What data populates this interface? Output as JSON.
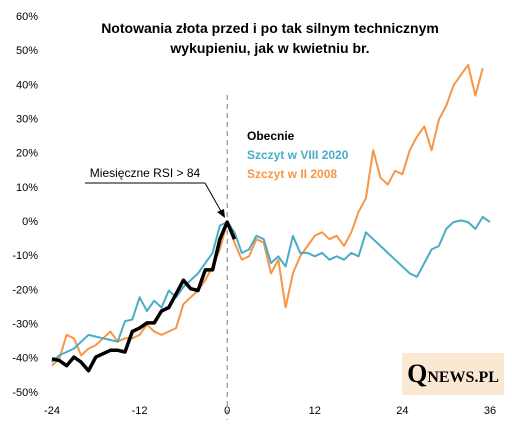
{
  "chart_data": {
    "type": "line",
    "title": "Notowania złota przed i po tak silnym technicznym wykupieniu, jak w kwietniu br.",
    "annotation": "Miesięczne RSI > 84",
    "logo": "QNEWS.PL",
    "x": [
      -24,
      -23,
      -22,
      -21,
      -20,
      -19,
      -18,
      -17,
      -16,
      -15,
      -14,
      -13,
      -12,
      -11,
      -10,
      -9,
      -8,
      -7,
      -6,
      -5,
      -4,
      -3,
      -2,
      -1,
      0,
      1,
      2,
      3,
      4,
      5,
      6,
      7,
      8,
      9,
      10,
      11,
      12,
      13,
      14,
      15,
      16,
      17,
      18,
      19,
      20,
      21,
      22,
      23,
      24,
      25,
      26,
      27,
      28,
      29,
      30,
      31,
      32,
      33,
      34,
      35,
      36
    ],
    "series": [
      {
        "name": "Obecnie",
        "color": "#000000",
        "values": [
          -40,
          -40.5,
          -42,
          -39.5,
          -41,
          -43.5,
          -39.5,
          -38.5,
          -37.5,
          -37.5,
          -38,
          -32,
          -31,
          -29.5,
          -29.5,
          -26,
          -25,
          -21,
          -17,
          -19.5,
          -20,
          -14,
          -14,
          -5,
          0,
          -5,
          null,
          null,
          null,
          null,
          null,
          null,
          null,
          null,
          null,
          null,
          null,
          null,
          null,
          null,
          null,
          null,
          null,
          null,
          null,
          null,
          null,
          null,
          null,
          null,
          null,
          null,
          null,
          null,
          null,
          null,
          null,
          null,
          null,
          null,
          null
        ]
      },
      {
        "name": "Szczyt w VIII 2020",
        "color": "#4bacc6",
        "values": [
          -41,
          -39,
          -38,
          -37,
          -35,
          -33,
          -33.5,
          -34,
          -34.5,
          -35,
          -29,
          -28.5,
          -22,
          -26,
          -23,
          -25,
          -20,
          -22,
          -19,
          -17,
          -15,
          -12,
          -9,
          -1,
          0,
          -3,
          -9,
          -8,
          -4,
          -5,
          -12,
          -10,
          -13,
          -4,
          -9,
          -9,
          -10,
          -9,
          -11,
          -10,
          -11,
          -9,
          -10,
          -3,
          -5,
          -7,
          -9,
          -11,
          -13,
          -15,
          -16,
          -12,
          -8,
          -7,
          -2,
          0,
          0.5,
          0,
          -2,
          1.5,
          0
        ]
      },
      {
        "name": "Szczyt w II 2008",
        "color": "#f79646",
        "values": [
          -42,
          -40,
          -33,
          -34,
          -39,
          -37,
          -36,
          -34,
          -32,
          -35,
          -34,
          -34,
          -33,
          -30,
          -32,
          -33,
          -32,
          -31,
          -24,
          -22,
          -20,
          -17,
          -13,
          -8,
          0,
          -6,
          -11,
          -10,
          -5,
          -6,
          -15,
          -11,
          -25,
          -15,
          -10,
          -7,
          -4,
          -3,
          -5,
          -4,
          -7,
          -3,
          3,
          7,
          21,
          13,
          11,
          15,
          14,
          21,
          25,
          28,
          21,
          30,
          34,
          40,
          43,
          46,
          37,
          45,
          null
        ]
      }
    ],
    "xlim": [
      -24,
      36
    ],
    "xticks": [
      -24,
      -12,
      0,
      12,
      24,
      36
    ],
    "ylim": [
      -50,
      60
    ],
    "yticks": [
      {
        "value": -50,
        "label": "-50%"
      },
      {
        "value": -40,
        "label": "-40%"
      },
      {
        "value": -30,
        "label": "-30%"
      },
      {
        "value": -20,
        "label": "-20%"
      },
      {
        "value": -10,
        "label": "-10%"
      },
      {
        "value": 0,
        "label": "0%"
      },
      {
        "value": 10,
        "label": "10%"
      },
      {
        "value": 20,
        "label": "20%"
      },
      {
        "value": 30,
        "label": "30%"
      },
      {
        "value": 40,
        "label": "40%"
      },
      {
        "value": 50,
        "label": "50%"
      },
      {
        "value": 60,
        "label": "60%"
      }
    ],
    "vline": 0,
    "grid": false
  }
}
